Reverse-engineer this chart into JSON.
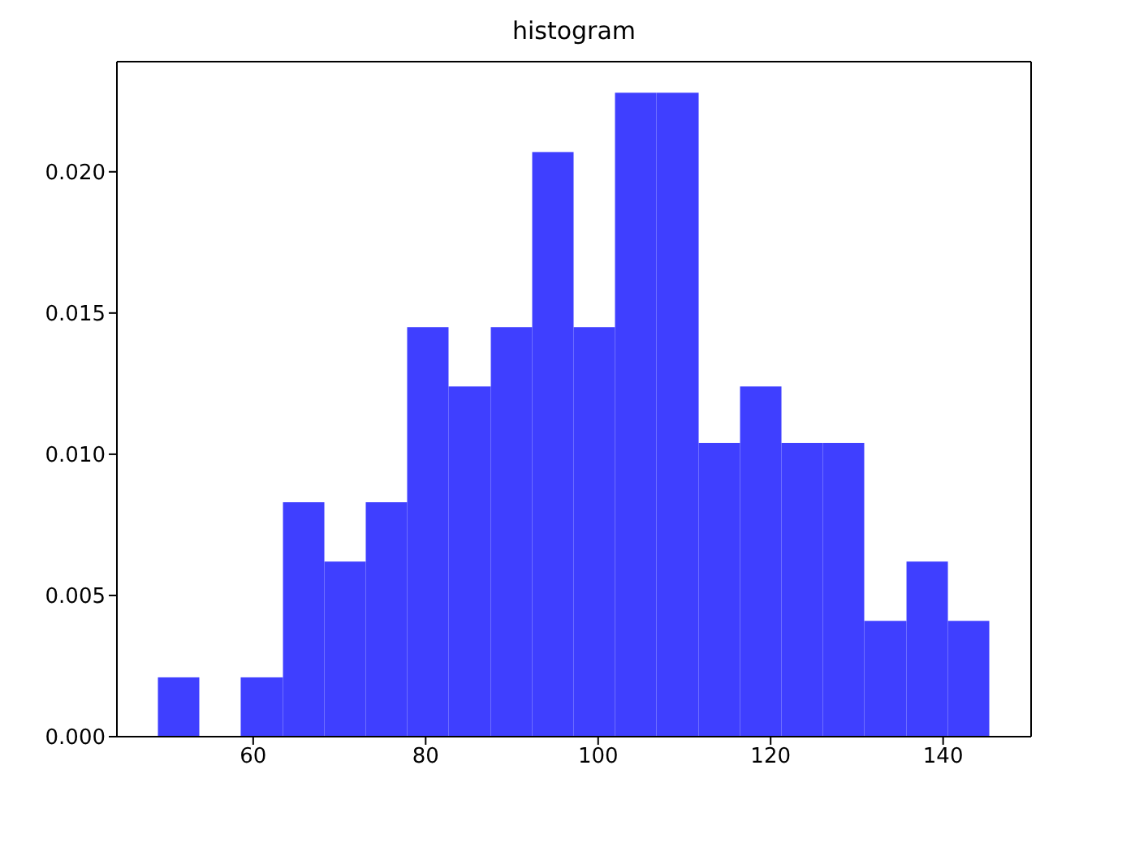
{
  "chart_data": {
    "type": "histogram",
    "title": "histogram",
    "bins": [
      49,
      53.8,
      58.6,
      63.5,
      68.3,
      73.1,
      77.9,
      82.7,
      87.6,
      92.4,
      97.2,
      102,
      106.8,
      111.7,
      116.5,
      121.3,
      126.1,
      130.9,
      135.8,
      140.6,
      145.4
    ],
    "values": [
      0.0021,
      0,
      0.0021,
      0.0083,
      0.0062,
      0.0083,
      0.0145,
      0.0124,
      0.0145,
      0.0207,
      0.0145,
      0.0228,
      0.0228,
      0.0104,
      0.0124,
      0.0104,
      0.0104,
      0.0041,
      0.0062,
      0.0041
    ],
    "color": "#3f3fff",
    "xlim": [
      44.2,
      150.2
    ],
    "xticks": [
      60,
      80,
      100,
      120,
      140
    ],
    "ylim": [
      0,
      0.0239
    ],
    "yticks": [
      {
        "value": 0,
        "label": "0.000"
      },
      {
        "value": 0.005,
        "label": "0.005"
      },
      {
        "value": 0.01,
        "label": "0.010"
      },
      {
        "value": 0.015,
        "label": "0.015"
      },
      {
        "value": 0.02,
        "label": "0.020"
      }
    ],
    "grid": false,
    "legend": false
  }
}
